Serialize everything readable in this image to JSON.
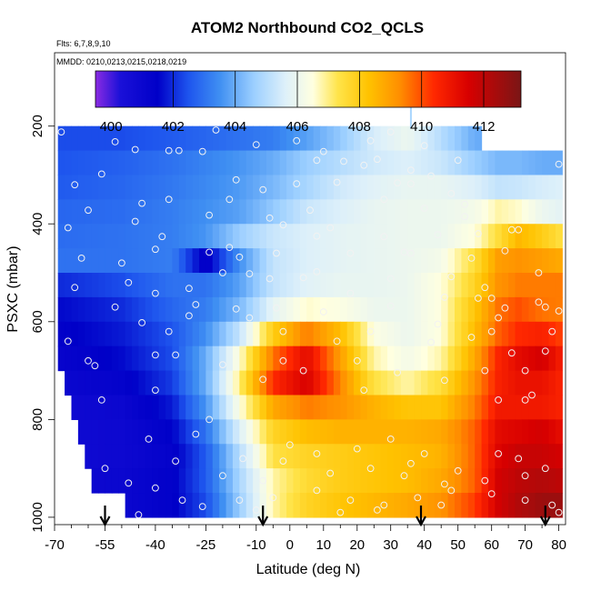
{
  "chart_data": {
    "type": "heatmap",
    "title": "ATOM2 Northbound CO2_QCLS",
    "subtitle_flights": "Flts: 6,7,8,9,10",
    "subtitle_dates": "MMDD: 0210,0213,0215,0218,0219",
    "xlabel": "Latitude (deg N)",
    "ylabel": "PSXC (mbar)",
    "xlim": [
      -70,
      82
    ],
    "ylim": [
      1015,
      50
    ],
    "x_ticks": [
      -70,
      -55,
      -40,
      -25,
      -10,
      0,
      10,
      20,
      30,
      40,
      50,
      60,
      70,
      80
    ],
    "x_tick_labels": [
      "-70",
      "-55",
      "-40",
      "-25",
      "-10",
      "0",
      "10",
      "20",
      "30",
      "40",
      "50",
      "60",
      "70",
      "80"
    ],
    "x_minor_ticks": [
      -65,
      -60,
      -50,
      -45,
      -35,
      -30,
      -20,
      -15,
      -5,
      5,
      15,
      25,
      35,
      45,
      55,
      65,
      75
    ],
    "y_ticks": [
      200,
      400,
      600,
      800,
      1000
    ],
    "y_tick_labels": [
      "200",
      "400",
      "600",
      "800",
      "1000"
    ],
    "colorbar": {
      "min": 399.5,
      "max": 413.2,
      "tick_values": [
        400,
        402,
        404,
        406,
        408,
        410,
        412
      ],
      "tick_labels": [
        "400",
        "402",
        "404",
        "406",
        "408",
        "410",
        "412"
      ],
      "line_values": [
        402,
        404,
        406,
        408,
        410,
        412
      ],
      "stops": [
        {
          "value": 399.5,
          "color": "#8a2be2"
        },
        {
          "value": 400.3,
          "color": "#1a10d8"
        },
        {
          "value": 401.5,
          "color": "#0000c8"
        },
        {
          "value": 402.5,
          "color": "#1e55ee"
        },
        {
          "value": 403.5,
          "color": "#3f8ff2"
        },
        {
          "value": 404.6,
          "color": "#9ccfff"
        },
        {
          "value": 405.6,
          "color": "#ddf0fa"
        },
        {
          "value": 406.5,
          "color": "#ffffe0"
        },
        {
          "value": 407.3,
          "color": "#ffe44a"
        },
        {
          "value": 408.3,
          "color": "#ffc200"
        },
        {
          "value": 409.3,
          "color": "#ff8e00"
        },
        {
          "value": 410.4,
          "color": "#ff2800"
        },
        {
          "value": 411.5,
          "color": "#d80000"
        },
        {
          "value": 413.2,
          "color": "#7a1616"
        }
      ]
    },
    "lat_grid": [
      -68,
      -66,
      -64,
      -62,
      -60,
      -58,
      -56,
      -54,
      -52,
      -50,
      -48,
      -46,
      -44,
      -42,
      -40,
      -38,
      -36,
      -34,
      -32,
      -30,
      -28,
      -26,
      -24,
      -22,
      -20,
      -18,
      -16,
      -14,
      -12,
      -10,
      -8,
      -6,
      -4,
      -2,
      0,
      2,
      4,
      6,
      8,
      10,
      12,
      14,
      16,
      18,
      20,
      22,
      24,
      26,
      28,
      30,
      32,
      34,
      36,
      38,
      40,
      42,
      44,
      46,
      48,
      50,
      52,
      54,
      56,
      58,
      60,
      62,
      64,
      66,
      68,
      70,
      72,
      74,
      76,
      78,
      80
    ],
    "pressure_levels": [
      225,
      275,
      325,
      375,
      425,
      475,
      525,
      575,
      625,
      675,
      725,
      775,
      825,
      875,
      925,
      975
    ],
    "lat_anchors": [
      -68,
      -50,
      -35,
      -25,
      -15,
      -5,
      5,
      15,
      25,
      35,
      45,
      55,
      62,
      68,
      75,
      80
    ],
    "value_rows": [
      [
        402.4,
        402.4,
        402.6,
        402.8,
        403.0,
        403.2,
        403.8,
        404.5,
        405.5,
        406.0,
        405.0,
        404.0,
        null,
        null,
        null,
        null
      ],
      [
        402.5,
        402.7,
        403.0,
        403.3,
        403.6,
        404.0,
        404.6,
        405.0,
        405.4,
        405.6,
        405.3,
        404.6,
        404.2,
        404.2,
        404.0,
        404.0
      ],
      [
        402.6,
        402.8,
        403.1,
        403.4,
        403.7,
        404.2,
        404.8,
        405.4,
        405.7,
        405.9,
        405.9,
        405.6,
        405.2,
        405.3,
        405.5,
        405.6
      ],
      [
        402.8,
        402.9,
        403.2,
        403.5,
        403.8,
        404.5,
        405.3,
        405.6,
        405.9,
        406.0,
        406.0,
        406.2,
        406.8,
        406.6,
        406.0,
        405.8
      ],
      [
        402.9,
        403.0,
        403.2,
        403.6,
        404.6,
        405.3,
        405.6,
        405.8,
        405.9,
        406.0,
        406.0,
        406.5,
        407.5,
        408.5,
        408.0,
        407.5
      ],
      [
        403.0,
        403.0,
        403.2,
        401.2,
        403.5,
        405.2,
        405.6,
        405.8,
        405.9,
        406.0,
        406.2,
        407.5,
        409.0,
        409.2,
        409.0,
        408.8
      ],
      [
        402.0,
        402.4,
        403.0,
        403.0,
        403.8,
        405.2,
        405.7,
        405.9,
        405.9,
        406.0,
        406.5,
        407.8,
        409.2,
        409.5,
        409.5,
        409.5
      ],
      [
        401.6,
        402.0,
        402.8,
        403.2,
        404.2,
        405.8,
        406.6,
        406.4,
        406.0,
        406.0,
        406.5,
        408.2,
        409.6,
        410.0,
        409.6,
        409.5
      ],
      [
        401.4,
        401.8,
        402.5,
        403.5,
        405.2,
        408.0,
        409.5,
        408.4,
        406.4,
        406.0,
        406.5,
        408.4,
        409.8,
        410.4,
        410.6,
        410.2
      ],
      [
        401.2,
        401.6,
        402.4,
        404.0,
        406.5,
        409.6,
        411.2,
        409.0,
        406.8,
        406.2,
        406.8,
        408.8,
        410.5,
        411.2,
        411.6,
        410.8
      ],
      [
        401.0,
        401.3,
        402.2,
        404.0,
        407.0,
        410.4,
        411.5,
        409.4,
        407.4,
        406.8,
        407.5,
        409.2,
        410.6,
        411.0,
        411.0,
        410.6
      ],
      [
        400.8,
        401.0,
        401.8,
        403.6,
        406.4,
        408.8,
        409.5,
        409.2,
        408.6,
        408.2,
        408.2,
        409.5,
        410.8,
        410.8,
        410.8,
        410.6
      ],
      [
        400.8,
        400.9,
        401.5,
        403.0,
        405.6,
        407.8,
        408.4,
        408.6,
        408.6,
        408.6,
        408.8,
        409.8,
        411.2,
        411.4,
        411.6,
        411.2
      ],
      [
        400.8,
        400.9,
        401.3,
        402.6,
        405.0,
        407.4,
        407.8,
        408.0,
        408.2,
        408.4,
        408.6,
        409.8,
        411.4,
        411.8,
        411.8,
        411.6
      ],
      [
        400.9,
        401.0,
        401.4,
        402.6,
        404.8,
        406.8,
        407.6,
        408.0,
        408.2,
        408.4,
        408.8,
        409.8,
        411.6,
        412.0,
        412.2,
        412.0
      ],
      [
        401.0,
        401.0,
        401.4,
        402.4,
        404.6,
        406.8,
        407.8,
        408.2,
        408.5,
        408.8,
        409.2,
        410.2,
        411.6,
        412.2,
        412.6,
        412.6
      ]
    ],
    "row_start_lat": [
      -68,
      -68,
      -68,
      -68,
      -68,
      -68,
      -68,
      -68,
      -68,
      -68,
      -66,
      -64,
      -62,
      -60,
      -58,
      -48
    ],
    "row_end_lat": [
      57,
      80,
      80,
      80,
      80,
      80,
      80,
      80,
      80,
      80,
      80,
      80,
      80,
      80,
      80,
      80
    ],
    "spike": {
      "lat": 36,
      "p_top": 145,
      "p_bottom": 205
    },
    "obs_points": [
      [
        -68,
        212
      ],
      [
        -64,
        320
      ],
      [
        -66,
        408
      ],
      [
        -62,
        470
      ],
      [
        -60,
        680
      ],
      [
        -58,
        690
      ],
      [
        -52,
        232
      ],
      [
        -46,
        248
      ],
      [
        -44,
        358
      ],
      [
        -40,
        452
      ],
      [
        -40,
        668
      ],
      [
        -40,
        740
      ],
      [
        -36,
        250
      ],
      [
        -33,
        250
      ],
      [
        -30,
        532
      ],
      [
        -26,
        252
      ],
      [
        -24,
        800
      ],
      [
        -22,
        208
      ],
      [
        -20,
        500
      ],
      [
        -18,
        350
      ],
      [
        -16,
        310
      ],
      [
        -15,
        468
      ],
      [
        -12,
        502
      ],
      [
        -10,
        238
      ],
      [
        -8,
        330
      ],
      [
        -6,
        388
      ],
      [
        -4,
        572
      ],
      [
        -2,
        680
      ],
      [
        2,
        318
      ],
      [
        4,
        510
      ],
      [
        6,
        372
      ],
      [
        8,
        498
      ],
      [
        10,
        252
      ],
      [
        12,
        408
      ],
      [
        16,
        272
      ],
      [
        18,
        542
      ],
      [
        22,
        280
      ],
      [
        24,
        230
      ],
      [
        26,
        268
      ],
      [
        28,
        426
      ],
      [
        30,
        212
      ],
      [
        32,
        316
      ],
      [
        34,
        458
      ],
      [
        36,
        290
      ],
      [
        40,
        368
      ],
      [
        42,
        302
      ],
      [
        44,
        422
      ],
      [
        46,
        550
      ],
      [
        48,
        338
      ],
      [
        50,
        270
      ],
      [
        52,
        385
      ],
      [
        54,
        470
      ],
      [
        56,
        552
      ],
      [
        58,
        530
      ],
      [
        60,
        620
      ],
      [
        62,
        592
      ],
      [
        64,
        455
      ],
      [
        66,
        412
      ],
      [
        68,
        412
      ],
      [
        70,
        700
      ],
      [
        72,
        750
      ],
      [
        74,
        560
      ],
      [
        76,
        570
      ],
      [
        78,
        620
      ],
      [
        80,
        278
      ],
      [
        80,
        578
      ],
      [
        -50,
        480
      ],
      [
        -2,
        620
      ],
      [
        -6,
        512
      ],
      [
        -34,
        668
      ],
      [
        -24,
        382
      ],
      [
        14,
        640
      ],
      [
        30,
        512
      ],
      [
        40,
        240
      ],
      [
        -56,
        298
      ],
      [
        -60,
        372
      ],
      [
        54,
        632
      ],
      [
        36,
        460
      ],
      [
        -42,
        840
      ],
      [
        -36,
        620
      ],
      [
        8,
        270
      ],
      [
        22,
        740
      ],
      [
        -28,
        565
      ],
      [
        20,
        680
      ],
      [
        44,
        605
      ],
      [
        -18,
        448
      ],
      [
        -48,
        520
      ],
      [
        32,
        704
      ],
      [
        60,
        552
      ],
      [
        -2,
        402
      ],
      [
        66,
        664
      ],
      [
        -40,
        542
      ],
      [
        -30,
        588
      ],
      [
        48,
        508
      ],
      [
        28,
        350
      ],
      [
        10,
        580
      ],
      [
        -44,
        602
      ],
      [
        58,
        700
      ],
      [
        -16,
        574
      ],
      [
        24,
        620
      ],
      [
        -52,
        570
      ],
      [
        42,
        642
      ],
      [
        70,
        760
      ],
      [
        74,
        500
      ],
      [
        18,
        460
      ],
      [
        -8,
        718
      ],
      [
        -56,
        760
      ],
      [
        62,
        760
      ],
      [
        -36,
        350
      ],
      [
        -20,
        688
      ],
      [
        14,
        315
      ],
      [
        36,
        318
      ],
      [
        52,
        360
      ],
      [
        -24,
        458
      ],
      [
        -66,
        640
      ],
      [
        2,
        230
      ],
      [
        -12,
        592
      ],
      [
        -64,
        530
      ],
      [
        -38,
        426
      ],
      [
        46,
        720
      ],
      [
        4,
        700
      ],
      [
        -4,
        460
      ],
      [
        56,
        420
      ],
      [
        8,
        425
      ],
      [
        -46,
        395
      ],
      [
        30,
        568
      ],
      [
        64,
        572
      ],
      [
        76,
        660
      ],
      [
        -40,
        940
      ],
      [
        -32,
        965
      ],
      [
        -15,
        965
      ],
      [
        -5,
        960
      ],
      [
        8,
        945
      ],
      [
        18,
        965
      ],
      [
        28,
        975
      ],
      [
        38,
        960
      ],
      [
        48,
        945
      ],
      [
        60,
        952
      ],
      [
        70,
        965
      ],
      [
        80,
        990
      ],
      [
        -10,
        985
      ],
      [
        15,
        990
      ],
      [
        -45,
        995
      ],
      [
        45,
        975
      ],
      [
        -26,
        978
      ],
      [
        26,
        985
      ],
      [
        78,
        975
      ],
      [
        -2,
        885
      ],
      [
        8,
        870
      ],
      [
        20,
        860
      ],
      [
        30,
        840
      ],
      [
        40,
        870
      ],
      [
        50,
        905
      ],
      [
        -20,
        915
      ],
      [
        -28,
        830
      ],
      [
        12,
        910
      ],
      [
        0,
        852
      ],
      [
        -14,
        880
      ],
      [
        24,
        900
      ],
      [
        34,
        915
      ],
      [
        62,
        870
      ],
      [
        70,
        915
      ],
      [
        58,
        925
      ],
      [
        -34,
        885
      ],
      [
        -48,
        930
      ],
      [
        -55,
        900
      ],
      [
        68,
        880
      ],
      [
        -8,
        925
      ],
      [
        46,
        932
      ],
      [
        36,
        890
      ],
      [
        76,
        900
      ]
    ],
    "obs_count_note": "white open circles mark flight sampling locations",
    "flight_start_arrows_lat": [
      -55,
      -8,
      39,
      76
    ],
    "missing_data_note": "blank triangle lower-left where no data"
  }
}
